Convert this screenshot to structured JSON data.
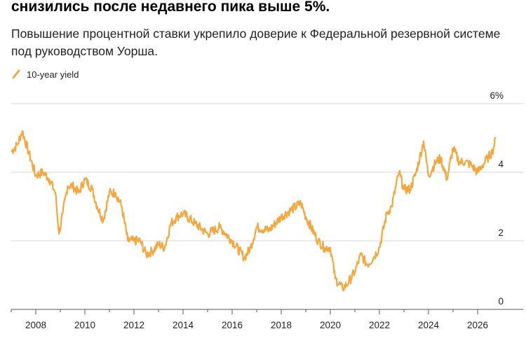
{
  "headline": "снизились после недавнего пика выше 5%.",
  "subtitle": "Повышение процентной ставки укрепило доверие к Федеральной резервной системе под руководством Уорша.",
  "colors": {
    "series": "#f7a63c",
    "grid": "#d4d4d4",
    "axis": "#555555",
    "background": "#ffffff"
  },
  "chart_data": {
    "type": "line",
    "title": "",
    "xlabel": "",
    "ylabel": "",
    "ylim": [
      0,
      6
    ],
    "xlim": [
      2007.0,
      2027.0
    ],
    "y_ticks": [
      {
        "value": 0,
        "label": "0"
      },
      {
        "value": 2,
        "label": "2"
      },
      {
        "value": 4,
        "label": "4"
      },
      {
        "value": 6,
        "label": "6%"
      }
    ],
    "x_ticks": [
      "2008",
      "2010",
      "2012",
      "2014",
      "2016",
      "2018",
      "2020",
      "2022",
      "2024",
      "2026"
    ],
    "grid": "horizontal",
    "legend_position": "top-left",
    "series": [
      {
        "name": "10-year yield",
        "x": [
          2007.0,
          2007.25,
          2007.45,
          2007.7,
          2008.0,
          2008.3,
          2008.55,
          2008.8,
          2008.95,
          2009.1,
          2009.3,
          2009.5,
          2009.75,
          2010.0,
          2010.3,
          2010.5,
          2010.75,
          2011.0,
          2011.25,
          2011.5,
          2011.75,
          2012.0,
          2012.25,
          2012.5,
          2012.75,
          2013.0,
          2013.25,
          2013.5,
          2013.75,
          2014.0,
          2014.5,
          2015.0,
          2015.5,
          2016.0,
          2016.5,
          2016.75,
          2017.0,
          2017.5,
          2018.0,
          2018.4,
          2018.8,
          2019.0,
          2019.5,
          2019.75,
          2020.0,
          2020.2,
          2020.5,
          2020.75,
          2021.0,
          2021.25,
          2021.5,
          2021.75,
          2022.0,
          2022.3,
          2022.5,
          2022.8,
          2023.0,
          2023.25,
          2023.5,
          2023.8,
          2024.0,
          2024.3,
          2024.5,
          2024.75,
          2025.0,
          2025.25,
          2025.5,
          2025.75,
          2026.0,
          2026.2,
          2026.4,
          2026.6,
          2026.75
        ],
        "y": [
          4.6,
          4.8,
          5.2,
          4.6,
          3.9,
          4.0,
          3.8,
          3.4,
          2.2,
          2.8,
          3.6,
          3.6,
          3.4,
          3.8,
          3.5,
          3.0,
          2.6,
          3.4,
          3.4,
          3.0,
          2.0,
          2.0,
          2.0,
          1.6,
          1.7,
          1.9,
          1.8,
          2.5,
          2.7,
          2.8,
          2.5,
          2.2,
          2.4,
          2.0,
          1.5,
          1.8,
          2.4,
          2.3,
          2.7,
          2.9,
          3.1,
          2.7,
          2.0,
          1.8,
          1.8,
          0.9,
          0.6,
          0.8,
          1.1,
          1.6,
          1.3,
          1.5,
          1.8,
          2.8,
          3.0,
          4.0,
          3.5,
          3.5,
          4.0,
          4.9,
          3.9,
          4.3,
          4.4,
          3.8,
          4.7,
          4.3,
          4.3,
          4.2,
          4.0,
          4.2,
          4.4,
          4.6,
          5.0
        ]
      }
    ]
  }
}
